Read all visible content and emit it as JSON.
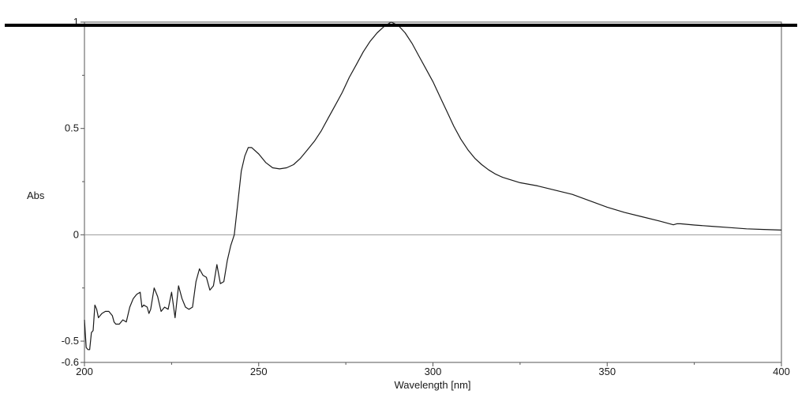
{
  "chart_data": {
    "type": "line",
    "title": "",
    "xlabel": "Wavelength [nm]",
    "ylabel": "Abs",
    "xlim": [
      200,
      400
    ],
    "ylim": [
      -0.6,
      1
    ],
    "x_ticks": [
      200,
      250,
      300,
      350,
      400
    ],
    "x_tick_labels": [
      "200",
      "250",
      "300",
      "350",
      "400"
    ],
    "y_ticks": [
      -0.6,
      -0.5,
      0,
      0.5,
      1
    ],
    "y_tick_labels": [
      "-0.6",
      "-0.5",
      "0",
      "0.5",
      "1"
    ],
    "grid": false,
    "reference_lines": [
      0
    ],
    "colors": {
      "line": "#1a1a1a",
      "zero_line": "#9a9a9a",
      "frame": "#555555",
      "top_bar": "#000000"
    },
    "series": [
      {
        "x": [
          200,
          200.5,
          201,
          201.5,
          202,
          202.5,
          203,
          203.5,
          204,
          205,
          206,
          207,
          208,
          208.5,
          209,
          210,
          211,
          212,
          213,
          214,
          215,
          216,
          216.5,
          217,
          218,
          218.5,
          219,
          220,
          221,
          222,
          223,
          224,
          225,
          226,
          227,
          228,
          229,
          230,
          231,
          232,
          233,
          234,
          235,
          236,
          237,
          238,
          239,
          240,
          241,
          242,
          243,
          244,
          245,
          246,
          247,
          248,
          250,
          252,
          254,
          256,
          258,
          260,
          262,
          264,
          266,
          268,
          270,
          272,
          274,
          276,
          278,
          280,
          282,
          284,
          286,
          288,
          290,
          292,
          294,
          296,
          298,
          300,
          302,
          304,
          306,
          308,
          310,
          312,
          314,
          316,
          318,
          320,
          322,
          325,
          330,
          335,
          340,
          345,
          350,
          355,
          360,
          365,
          369,
          370,
          371,
          375,
          380,
          385,
          390,
          395,
          400
        ],
        "y": [
          -0.4,
          -0.53,
          -0.54,
          -0.54,
          -0.46,
          -0.45,
          -0.33,
          -0.35,
          -0.39,
          -0.37,
          -0.36,
          -0.36,
          -0.38,
          -0.41,
          -0.42,
          -0.42,
          -0.4,
          -0.41,
          -0.34,
          -0.3,
          -0.28,
          -0.27,
          -0.34,
          -0.33,
          -0.34,
          -0.37,
          -0.35,
          -0.25,
          -0.29,
          -0.36,
          -0.34,
          -0.35,
          -0.27,
          -0.39,
          -0.24,
          -0.3,
          -0.34,
          -0.35,
          -0.34,
          -0.22,
          -0.16,
          -0.19,
          -0.2,
          -0.26,
          -0.24,
          -0.14,
          -0.23,
          -0.22,
          -0.12,
          -0.05,
          0.0,
          0.15,
          0.3,
          0.37,
          0.41,
          0.41,
          0.38,
          0.34,
          0.315,
          0.31,
          0.315,
          0.33,
          0.36,
          0.4,
          0.44,
          0.49,
          0.55,
          0.61,
          0.67,
          0.74,
          0.8,
          0.86,
          0.91,
          0.95,
          0.98,
          1.0,
          0.985,
          0.95,
          0.9,
          0.84,
          0.78,
          0.72,
          0.65,
          0.58,
          0.51,
          0.45,
          0.4,
          0.36,
          0.33,
          0.305,
          0.285,
          0.27,
          0.26,
          0.245,
          0.23,
          0.21,
          0.19,
          0.16,
          0.13,
          0.105,
          0.085,
          0.065,
          0.047,
          0.052,
          0.052,
          0.046,
          0.04,
          0.034,
          0.028,
          0.025,
          0.022
        ]
      }
    ]
  }
}
